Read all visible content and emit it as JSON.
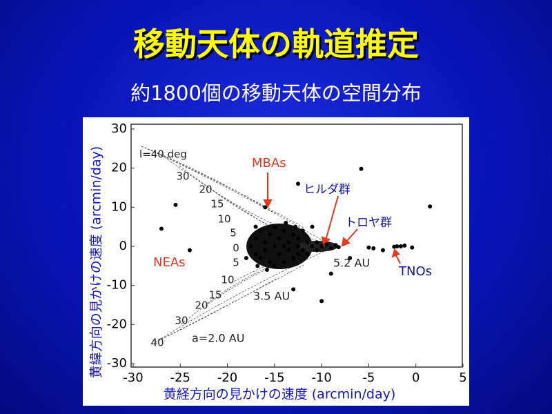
{
  "slide": {
    "title": "移動天体の軌道推定",
    "subtitle": "約1800個の移動天体の空間分布"
  },
  "chart_data": {
    "type": "scatter",
    "x_label": "黄経方向の見かけの速度 (arcmin/day)",
    "y_label": "黄緯方向の見かけの速度 (arcmin/day)",
    "xlim": [
      -30,
      5
    ],
    "ylim": [
      -30,
      30
    ],
    "xticks": [
      -30,
      -25,
      -20,
      -15,
      -10,
      -5,
      0,
      5
    ],
    "yticks": [
      -30,
      -20,
      -10,
      0,
      10,
      20,
      30
    ],
    "color": "#000000",
    "annotations": [
      "l=40 deg",
      "MBAs",
      "ヒルダ群",
      "トロヤ群",
      "NEAs",
      "5.2 AU",
      "3.5 AU",
      "a=2.0 AU",
      "TNOs"
    ],
    "inclination_labels": [
      30,
      20,
      15,
      10,
      5,
      0,
      5,
      10,
      15,
      20,
      30,
      40
    ],
    "x": [
      -25.5,
      -27,
      -24,
      -5.8,
      1.5,
      -4.5,
      -3.5,
      -2,
      -1.6,
      -1.2,
      -0.4,
      -2.3,
      -10,
      -12.5,
      -16,
      -17,
      -11,
      -9,
      -7,
      -5,
      -13,
      -18,
      -17.5,
      -17,
      -17,
      -16.5,
      -16.5,
      -16,
      -16,
      -15.5,
      -15.5,
      -15,
      -15,
      -15,
      -14.5,
      -14.5,
      -14,
      -14,
      -14,
      -13.5,
      -13.5,
      -13,
      -13,
      -12.5,
      -12.5,
      -12.5,
      -12,
      -12,
      -11.5,
      -11.5,
      -11,
      -10.5,
      -10.5,
      -10,
      -9.5,
      -9,
      -8.5,
      -8.2,
      -15.8,
      -13.8,
      -16.8,
      -12.8
    ],
    "values": [
      10.6,
      4.5,
      -1,
      19.8,
      10.2,
      -0.5,
      -1,
      0,
      0,
      0.2,
      -0.3,
      -0.1,
      -14,
      16,
      10,
      5,
      5,
      -7,
      -3,
      -0.3,
      -11,
      -3,
      0,
      2,
      -2,
      4,
      -3,
      1,
      -1,
      3,
      -4,
      0,
      5,
      -5,
      2,
      -2,
      4,
      -4,
      0,
      1,
      -1,
      3,
      -3,
      0,
      2,
      -2,
      4,
      -1,
      1,
      -2,
      0,
      1,
      -1,
      0,
      0.5,
      -0.5,
      0.3,
      -0.2,
      -6,
      6,
      -5,
      5
    ]
  }
}
